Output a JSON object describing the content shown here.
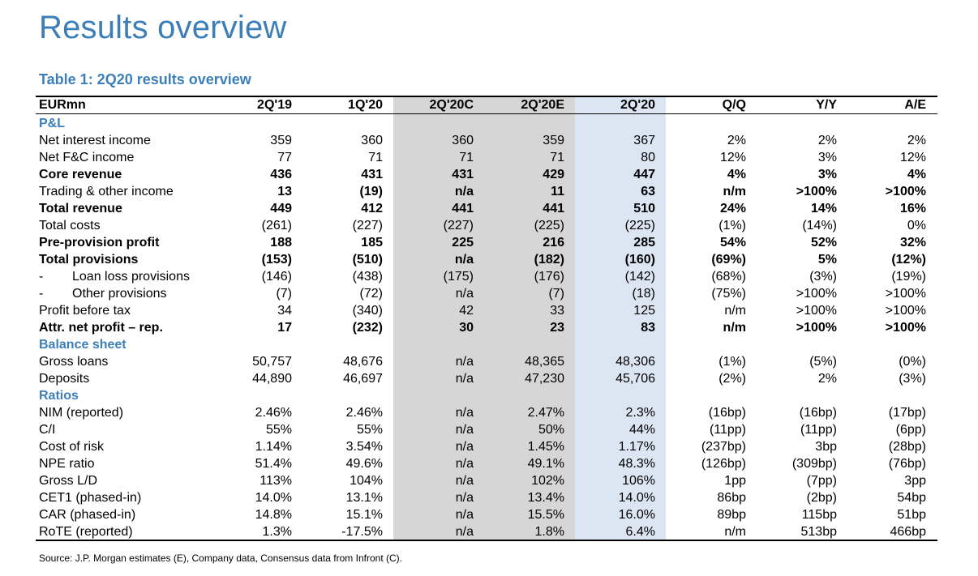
{
  "page": {
    "title": "Results overview",
    "table_title": "Table 1: 2Q20 results overview",
    "source": "Source: J.P. Morgan estimates (E), Company data, Consensus data from Infront (C)."
  },
  "table": {
    "columns": [
      "EURmn",
      "2Q'19",
      "1Q'20",
      "2Q'20C",
      "2Q'20E",
      "2Q'20",
      "Q/Q",
      "Y/Y",
      "A/E"
    ],
    "rows": [
      {
        "type": "section",
        "label": "P&L"
      },
      {
        "label": "Net interest income",
        "values": [
          "359",
          "360",
          "360",
          "359",
          "367",
          "2%",
          "2%",
          "2%"
        ]
      },
      {
        "label": "Net F&C income",
        "values": [
          "77",
          "71",
          "71",
          "71",
          "80",
          "12%",
          "3%",
          "12%"
        ]
      },
      {
        "label": "Core revenue",
        "bold": true,
        "values": [
          "436",
          "431",
          "431",
          "429",
          "447",
          "4%",
          "3%",
          "4%"
        ]
      },
      {
        "label": "Trading & other income",
        "values": [
          "13",
          "(19)",
          "n/a",
          "11",
          "63",
          "n/m",
          ">100%",
          ">100%"
        ],
        "bold_values": true
      },
      {
        "label": "Total revenue",
        "bold": true,
        "values": [
          "449",
          "412",
          "441",
          "441",
          "510",
          "24%",
          "14%",
          "16%"
        ]
      },
      {
        "label": "Total costs",
        "values": [
          "(261)",
          "(227)",
          "(227)",
          "(225)",
          "(225)",
          "(1%)",
          "(14%)",
          "0%"
        ]
      },
      {
        "label": "Pre-provision profit",
        "bold": true,
        "values": [
          "188",
          "185",
          "225",
          "216",
          "285",
          "54%",
          "52%",
          "32%"
        ]
      },
      {
        "label": "Total provisions",
        "bold": true,
        "values": [
          "(153)",
          "(510)",
          "n/a",
          "(182)",
          "(160)",
          "(69%)",
          "5%",
          "(12%)"
        ]
      },
      {
        "label": "Loan loss provisions",
        "indent": true,
        "dash": "-",
        "values": [
          "(146)",
          "(438)",
          "(175)",
          "(176)",
          "(142)",
          "(68%)",
          "(3%)",
          "(19%)"
        ]
      },
      {
        "label": "Other provisions",
        "indent": true,
        "dash": "-",
        "values": [
          "(7)",
          "(72)",
          "n/a",
          "(7)",
          "(18)",
          "(75%)",
          ">100%",
          ">100%"
        ]
      },
      {
        "label": "Profit before tax",
        "values": [
          "34",
          "(340)",
          "42",
          "33",
          "125",
          "n/m",
          ">100%",
          ">100%"
        ]
      },
      {
        "label": "Attr. net profit – rep.",
        "bold": true,
        "values": [
          "17",
          "(232)",
          "30",
          "23",
          "83",
          "n/m",
          ">100%",
          ">100%"
        ]
      },
      {
        "type": "section",
        "label": "Balance sheet"
      },
      {
        "label": "Gross loans",
        "values": [
          "50,757",
          "48,676",
          "n/a",
          "48,365",
          "48,306",
          "(1%)",
          "(5%)",
          "(0%)"
        ]
      },
      {
        "label": "Deposits",
        "values": [
          "44,890",
          "46,697",
          "n/a",
          "47,230",
          "45,706",
          "(2%)",
          "2%",
          "(3%)"
        ]
      },
      {
        "type": "section",
        "label": "Ratios"
      },
      {
        "label": "NIM (reported)",
        "values": [
          "2.46%",
          "2.46%",
          "n/a",
          "2.47%",
          "2.3%",
          "(16bp)",
          "(16bp)",
          "(17bp)"
        ]
      },
      {
        "label": "C/I",
        "values": [
          "55%",
          "55%",
          "n/a",
          "50%",
          "44%",
          "(11pp)",
          "(11pp)",
          "(6pp)"
        ]
      },
      {
        "label": "Cost of risk",
        "values": [
          "1.14%",
          "3.54%",
          "n/a",
          "1.45%",
          "1.17%",
          "(237bp)",
          "3bp",
          "(28bp)"
        ]
      },
      {
        "label": "NPE ratio",
        "values": [
          "51.4%",
          "49.6%",
          "n/a",
          "49.1%",
          "48.3%",
          "(126bp)",
          "(309bp)",
          "(76bp)"
        ]
      },
      {
        "label": "Gross L/D",
        "values": [
          "113%",
          "104%",
          "n/a",
          "102%",
          "106%",
          "1pp",
          "(7pp)",
          "3pp"
        ]
      },
      {
        "label": "CET1 (phased-in)",
        "values": [
          "14.0%",
          "13.1%",
          "n/a",
          "13.4%",
          "14.0%",
          "86bp",
          "(2bp)",
          "54bp"
        ]
      },
      {
        "label": "CAR (phased-in)",
        "values": [
          "14.8%",
          "15.1%",
          "n/a",
          "15.5%",
          "16.0%",
          "89bp",
          "115bp",
          "51bp"
        ]
      },
      {
        "label": "RoTE (reported)",
        "values": [
          "1.3%",
          "-17.5%",
          "n/a",
          "1.8%",
          "6.4%",
          "n/m",
          "513bp",
          "466bp"
        ]
      }
    ]
  }
}
